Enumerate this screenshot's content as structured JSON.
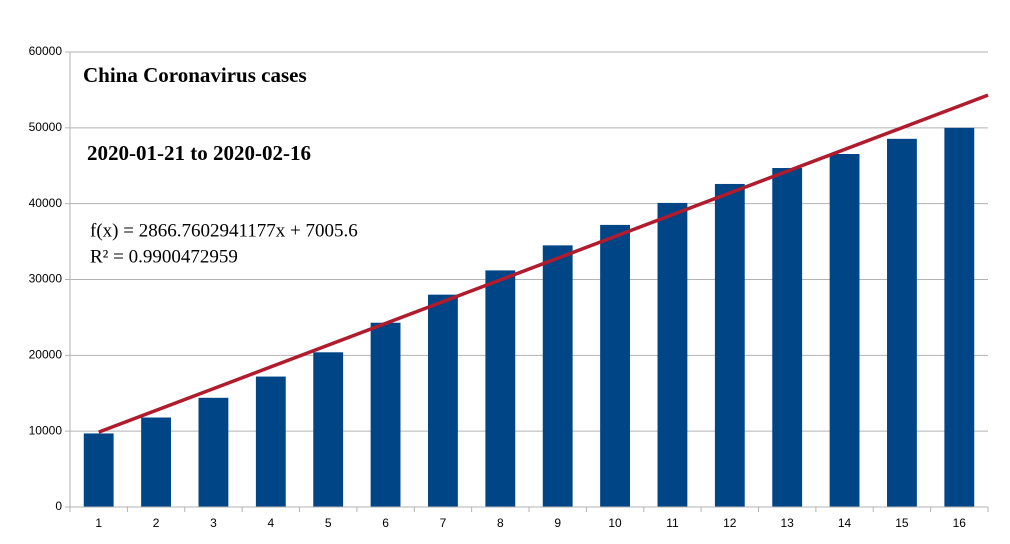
{
  "chart_data": {
    "type": "bar",
    "title": "China Coronavirus cases",
    "subtitle": "2020-01-21 to 2020-02-16",
    "annotations": [
      "f(x) = 2866.7602941177x + 7005.6",
      "R² = 0.9900472959"
    ],
    "categories": [
      "1",
      "2",
      "3",
      "4",
      "5",
      "6",
      "7",
      "8",
      "9",
      "10",
      "11",
      "12",
      "13",
      "14",
      "15",
      "16"
    ],
    "values": [
      9700,
      11800,
      14400,
      17200,
      20400,
      24300,
      28000,
      31200,
      34500,
      37200,
      40100,
      42600,
      44700,
      46550,
      48550,
      50000
    ],
    "color": "#004586",
    "trendline": {
      "x": [
        1,
        16.5
      ],
      "values": [
        9872,
        54307
      ],
      "color": "#b01c2e"
    },
    "ylim": [
      0,
      60000
    ],
    "yticks": [
      0,
      10000,
      20000,
      30000,
      40000,
      50000,
      60000
    ],
    "grid": true
  }
}
